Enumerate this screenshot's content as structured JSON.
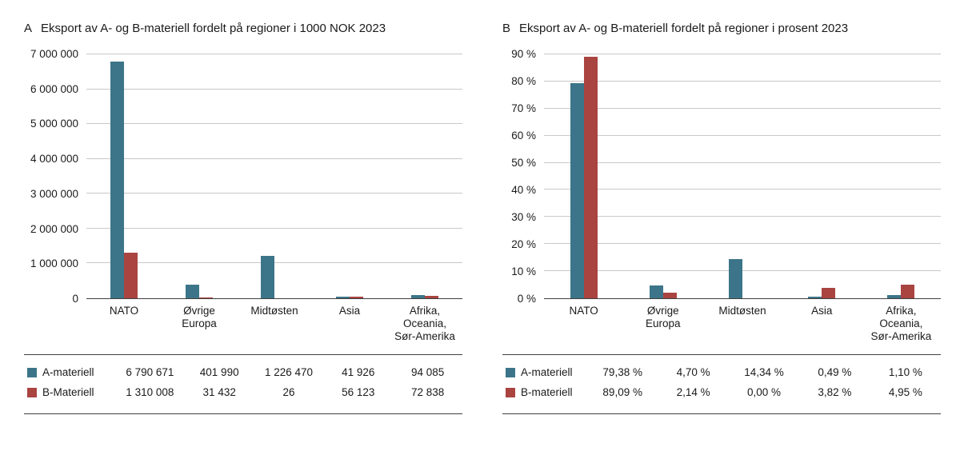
{
  "colors": {
    "series_a": "#3c7589",
    "series_b": "#a94441",
    "grid": "#c8c8c8",
    "axis": "#3f3f3f",
    "text": "#1a1a1a"
  },
  "chart_data": [
    {
      "type": "bar",
      "panel_letter": "A",
      "title": "Eksport av A- og B-materiell fordelt på regioner i 1000 NOK 2023",
      "categories": [
        [
          "NATO"
        ],
        [
          "Øvrige",
          "Europa"
        ],
        [
          "Midtøsten"
        ],
        [
          "Asia"
        ],
        [
          "Afrika,",
          "Oceania,",
          "Sør-Amerika"
        ]
      ],
      "series": [
        {
          "name": "A-materiell",
          "color_key": "series_a",
          "values": [
            6790671,
            401990,
            1226470,
            41926,
            94085
          ],
          "labels": [
            "6 790 671",
            "401 990",
            "1 226 470",
            "41 926",
            "94 085"
          ]
        },
        {
          "name": "B-Materiell",
          "color_key": "series_b",
          "values": [
            1310008,
            31432,
            26,
            56123,
            72838
          ],
          "labels": [
            "1 310 008",
            "31 432",
            "26",
            "56 123",
            "72 838"
          ]
        }
      ],
      "ylim": [
        0,
        7000000
      ],
      "ytick_labels": [
        "0",
        "1 000 000",
        "2 000 000",
        "3 000 000",
        "4 000 000",
        "5 000 000",
        "6 000 000",
        "7 000 000"
      ],
      "grid": true,
      "legend_position": "bottom-table"
    },
    {
      "type": "bar",
      "panel_letter": "B",
      "title": "Eksport av A- og B-materiell fordelt på regioner i prosent 2023",
      "categories": [
        [
          "NATO"
        ],
        [
          "Øvrige",
          "Europa"
        ],
        [
          "Midtøsten"
        ],
        [
          "Asia"
        ],
        [
          "Afrika,",
          "Oceania,",
          "Sør-Amerika"
        ]
      ],
      "series": [
        {
          "name": "A-materiell",
          "color_key": "series_a",
          "values": [
            79.38,
            4.7,
            14.34,
            0.49,
            1.1
          ],
          "labels": [
            "79,38 %",
            "4,70 %",
            "14,34 %",
            "0,49 %",
            "1,10 %"
          ]
        },
        {
          "name": "B-materiell",
          "color_key": "series_b",
          "values": [
            89.09,
            2.14,
            0.0,
            3.82,
            4.95
          ],
          "labels": [
            "89,09 %",
            "2,14 %",
            "0,00 %",
            "3,82 %",
            "4,95 %"
          ]
        }
      ],
      "ylim": [
        0,
        90
      ],
      "ytick_labels": [
        "0 %",
        "10 %",
        "20 %",
        "30 %",
        "40 %",
        "50 %",
        "60 %",
        "70 %",
        "80 %",
        "90 %"
      ],
      "grid": true,
      "legend_position": "bottom-table"
    }
  ]
}
